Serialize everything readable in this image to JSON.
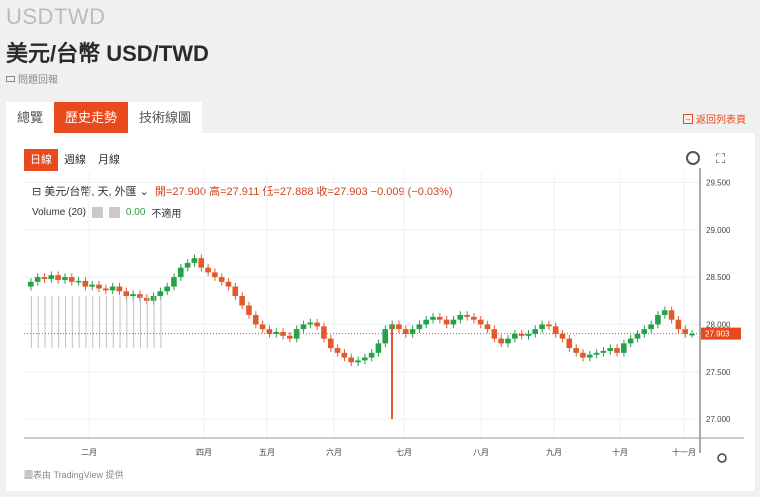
{
  "header": {
    "ticker": "USDTWD",
    "title": "美元/台幣 USD/TWD",
    "report_label": "問題回報"
  },
  "tabs": [
    {
      "label": "總覽",
      "active": false
    },
    {
      "label": "歷史走勢",
      "active": true
    },
    {
      "label": "技術線圖",
      "active": false
    }
  ],
  "back_link": "返回列表頁",
  "range_tabs": [
    {
      "label": "日線",
      "active": true
    },
    {
      "label": "週線",
      "active": false
    },
    {
      "label": "月線",
      "active": false
    }
  ],
  "legend": {
    "symbol_label": "美元/台幣, 天, 外匯",
    "ohlc": "開=27.900 高=27.911 低=27.888 收=27.903 −0.009 (−0.03%)",
    "volume_label": "Volume (20)",
    "volume_value": "0.00",
    "volume_note": "不適用"
  },
  "credit": "圖表由 TradingView 提供",
  "colors": {
    "accent": "#e8491d",
    "up": "#26a049",
    "down": "#e05a2e",
    "price_line": "#e8491d"
  },
  "chart_data": {
    "type": "candlestick",
    "title": "",
    "ylim": [
      26.8,
      29.6
    ],
    "y_ticks": [
      "29.500",
      "29.000",
      "28.500",
      "28.000",
      "27.500",
      "27.000"
    ],
    "x_ticks": [
      "二月",
      "四月",
      "五月",
      "六月",
      "七月",
      "八月",
      "九月",
      "十月",
      "十一月"
    ],
    "last_price": "27.903",
    "closes": [
      28.45,
      28.5,
      28.48,
      28.52,
      28.47,
      28.5,
      28.45,
      28.46,
      28.4,
      28.42,
      28.38,
      28.36,
      28.4,
      28.35,
      28.3,
      28.32,
      28.28,
      28.25,
      28.3,
      28.35,
      28.4,
      28.5,
      28.6,
      28.65,
      28.7,
      28.6,
      28.55,
      28.5,
      28.45,
      28.4,
      28.3,
      28.2,
      28.1,
      28.0,
      27.95,
      27.9,
      27.92,
      27.88,
      27.85,
      27.95,
      28.0,
      28.02,
      27.98,
      27.85,
      27.75,
      27.7,
      27.65,
      27.6,
      27.62,
      27.65,
      27.7,
      27.8,
      27.95,
      28.0,
      27.95,
      27.9,
      27.95,
      28.0,
      28.05,
      28.08,
      28.05,
      28.0,
      28.05,
      28.1,
      28.08,
      28.05,
      28.0,
      27.95,
      27.85,
      27.8,
      27.85,
      27.9,
      27.88,
      27.9,
      27.95,
      28.0,
      27.98,
      27.9,
      27.85,
      27.75,
      27.7,
      27.65,
      27.68,
      27.7,
      27.72,
      27.75,
      27.7,
      27.8,
      27.85,
      27.9,
      27.95,
      28.0,
      28.1,
      28.15,
      28.05,
      27.95,
      27.9,
      27.9
    ]
  }
}
